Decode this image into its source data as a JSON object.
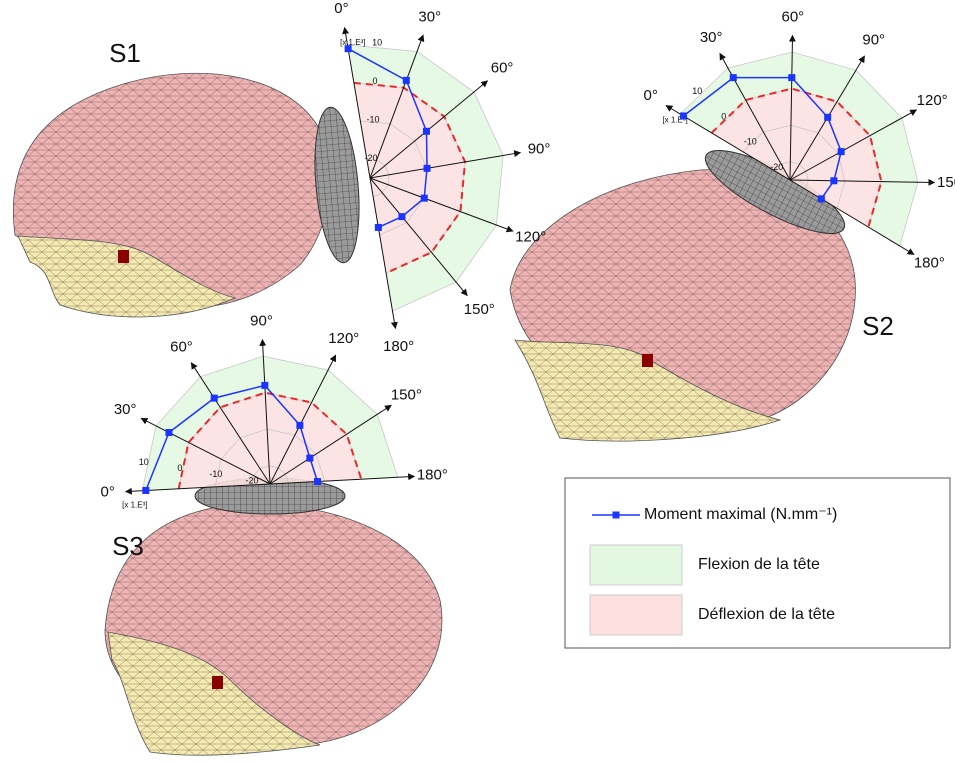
{
  "chart_data": [
    {
      "type": "radar",
      "title": "S1",
      "categories": [
        "0°",
        "30°",
        "60°",
        "90°",
        "120°",
        "150°",
        "180°"
      ],
      "values": [
        9,
        2,
        -6,
        -10,
        -10,
        -12,
        -12
      ],
      "ylim": [
        -25,
        10
      ],
      "yticks": [
        10,
        0,
        -10,
        -20
      ],
      "unit_label": "[x 1.E³]"
    },
    {
      "type": "radar",
      "title": "S2",
      "categories": [
        "0°",
        "30°",
        "60°",
        "90°",
        "120°",
        "150°",
        "180°"
      ],
      "values": [
        9,
        7,
        3,
        -5,
        -9,
        -13,
        -15
      ],
      "ylim": [
        -25,
        10
      ],
      "yticks": [
        10,
        0,
        -10,
        -20
      ],
      "unit_label": "[x 1.E³]"
    },
    {
      "type": "radar",
      "title": "S3",
      "categories": [
        "0°",
        "30°",
        "60°",
        "90°",
        "120°",
        "150°",
        "180°"
      ],
      "values": [
        9,
        6,
        3,
        2,
        -7,
        -12,
        -12
      ],
      "ylim": [
        -25,
        10
      ],
      "yticks": [
        10,
        0,
        -10,
        -20
      ],
      "unit_label": "[x 1.E³]"
    }
  ],
  "legend": {
    "series": {
      "name": "Moment maximal (N.mm⁻¹)",
      "color": "#1a35ff"
    },
    "regions": [
      {
        "name": "Flexion de la tête",
        "color": "#e3f8e1",
        "range": [
          0,
          10
        ]
      },
      {
        "name": "Déflexion de la tête",
        "color": "#fde1e1",
        "range": [
          -25,
          0
        ]
      }
    ],
    "boundary_color": "#e8282b"
  }
}
